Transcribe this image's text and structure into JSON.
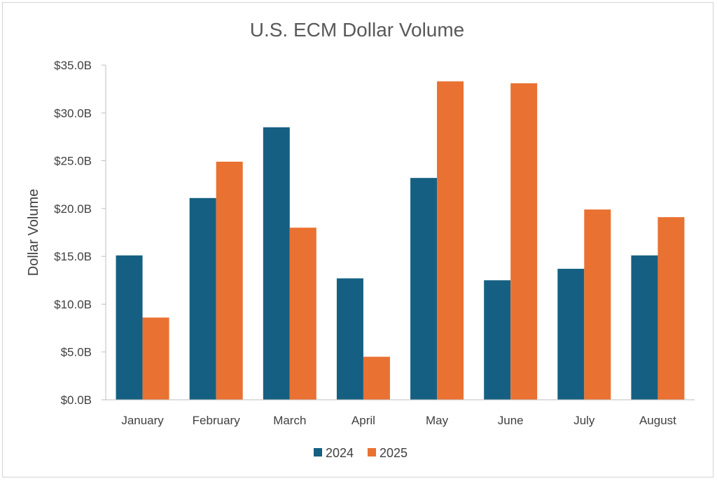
{
  "chart_data": {
    "type": "bar",
    "title": "U.S. ECM Dollar Volume",
    "xlabel": "",
    "ylabel": "Dollar Volume",
    "ylim": [
      0,
      35
    ],
    "yticks": [
      0,
      5,
      10,
      15,
      20,
      25,
      30,
      35
    ],
    "ytick_labels": [
      "$0.0B",
      "$5.0B",
      "$10.0B",
      "$15.0B",
      "$20.0B",
      "$25.0B",
      "$30.0B",
      "$35.0B"
    ],
    "categories": [
      "January",
      "February",
      "March",
      "April",
      "May",
      "June",
      "July",
      "August"
    ],
    "series": [
      {
        "name": "2024",
        "color": "#156082",
        "values": [
          15.1,
          21.1,
          28.5,
          12.7,
          23.2,
          12.5,
          13.7,
          15.1
        ]
      },
      {
        "name": "2025",
        "color": "#E97132",
        "values": [
          8.6,
          24.9,
          18.0,
          4.5,
          33.3,
          33.1,
          19.9,
          19.1
        ]
      }
    ],
    "grid": false,
    "legend": "bottom"
  }
}
